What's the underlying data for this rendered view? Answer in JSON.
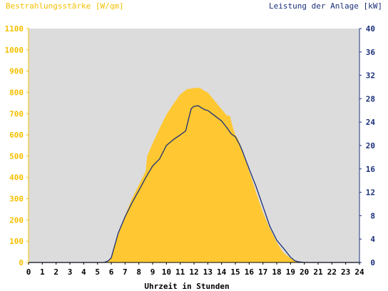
{
  "chart_data": {
    "type": "area",
    "ylabel_left": "Bestrahlungsstärke [W/qm]",
    "ylabel_right": "Leistung der Anlage [kW]",
    "xlabel": "Uhrzeit in Stunden",
    "xlim": [
      0,
      24
    ],
    "ylim_left": [
      0,
      1100
    ],
    "ylim_right": [
      0,
      40
    ],
    "x_ticks": [
      "0",
      "1",
      "2",
      "3",
      "4",
      "5",
      "6",
      "7",
      "8",
      "9",
      "10",
      "11",
      "12",
      "13",
      "14",
      "15",
      "16",
      "17",
      "18",
      "19",
      "20",
      "21",
      "22",
      "23",
      "24"
    ],
    "y_left_ticks": [
      "0",
      "100",
      "200",
      "300",
      "400",
      "500",
      "600",
      "700",
      "800",
      "900",
      "1000",
      "1100"
    ],
    "y_right_ticks": [
      "0",
      "4",
      "8",
      "12",
      "16",
      "20",
      "24",
      "28",
      "32",
      "36",
      "40"
    ],
    "grid": false,
    "colors": {
      "irradiance": "#ffc832",
      "power": "#1a2f78",
      "plot_bg": "#dcdcdc",
      "left_axis": "#f5c000",
      "right_axis": "#1a2f78"
    },
    "series": [
      {
        "axis": "left",
        "style": "area",
        "x": [
          0,
          5.5,
          5.8,
          6.0,
          6.2,
          6.5,
          7.0,
          7.5,
          8.0,
          8.5,
          8.6,
          9.0,
          9.5,
          10.0,
          10.5,
          11.0,
          11.5,
          12.0,
          12.3,
          12.5,
          12.8,
          13.0,
          13.5,
          14.0,
          14.4,
          14.6,
          14.8,
          15.0,
          15.2,
          15.5,
          16.0,
          16.5,
          17.0,
          17.5,
          18.0,
          18.5,
          19.0,
          19.5,
          19.8,
          20.0,
          20.2,
          24
        ],
        "y": [
          0,
          0,
          5,
          25,
          80,
          130,
          220,
          300,
          365,
          430,
          500,
          560,
          630,
          695,
          745,
          790,
          815,
          820,
          822,
          818,
          805,
          800,
          760,
          720,
          690,
          690,
          640,
          600,
          580,
          530,
          430,
          330,
          235,
          160,
          95,
          45,
          20,
          5,
          2,
          0,
          0,
          0
        ]
      },
      {
        "axis": "right",
        "style": "line",
        "x": [
          0,
          5.5,
          5.8,
          6.0,
          6.2,
          6.5,
          7.0,
          7.5,
          8.0,
          8.5,
          9.0,
          9.5,
          10.0,
          10.5,
          11.0,
          11.4,
          11.6,
          11.8,
          12.0,
          12.3,
          12.5,
          12.8,
          13.0,
          13.5,
          14.0,
          14.4,
          14.7,
          15.0,
          15.3,
          15.5,
          16.0,
          16.5,
          17.0,
          17.5,
          18.0,
          18.5,
          19.0,
          19.3,
          19.6,
          20.0,
          24
        ],
        "y": [
          0,
          0,
          0.3,
          0.8,
          2.5,
          5.0,
          7.8,
          10.2,
          12.3,
          14.5,
          16.5,
          17.7,
          20.0,
          21.0,
          21.8,
          22.5,
          24.5,
          26.3,
          26.7,
          26.8,
          26.5,
          26.1,
          26.0,
          25.1,
          24.2,
          23.0,
          22.0,
          21.5,
          20.2,
          19.1,
          16.0,
          13.0,
          9.6,
          6.2,
          3.8,
          2.4,
          0.9,
          0.3,
          0.1,
          0,
          0
        ]
      }
    ]
  }
}
